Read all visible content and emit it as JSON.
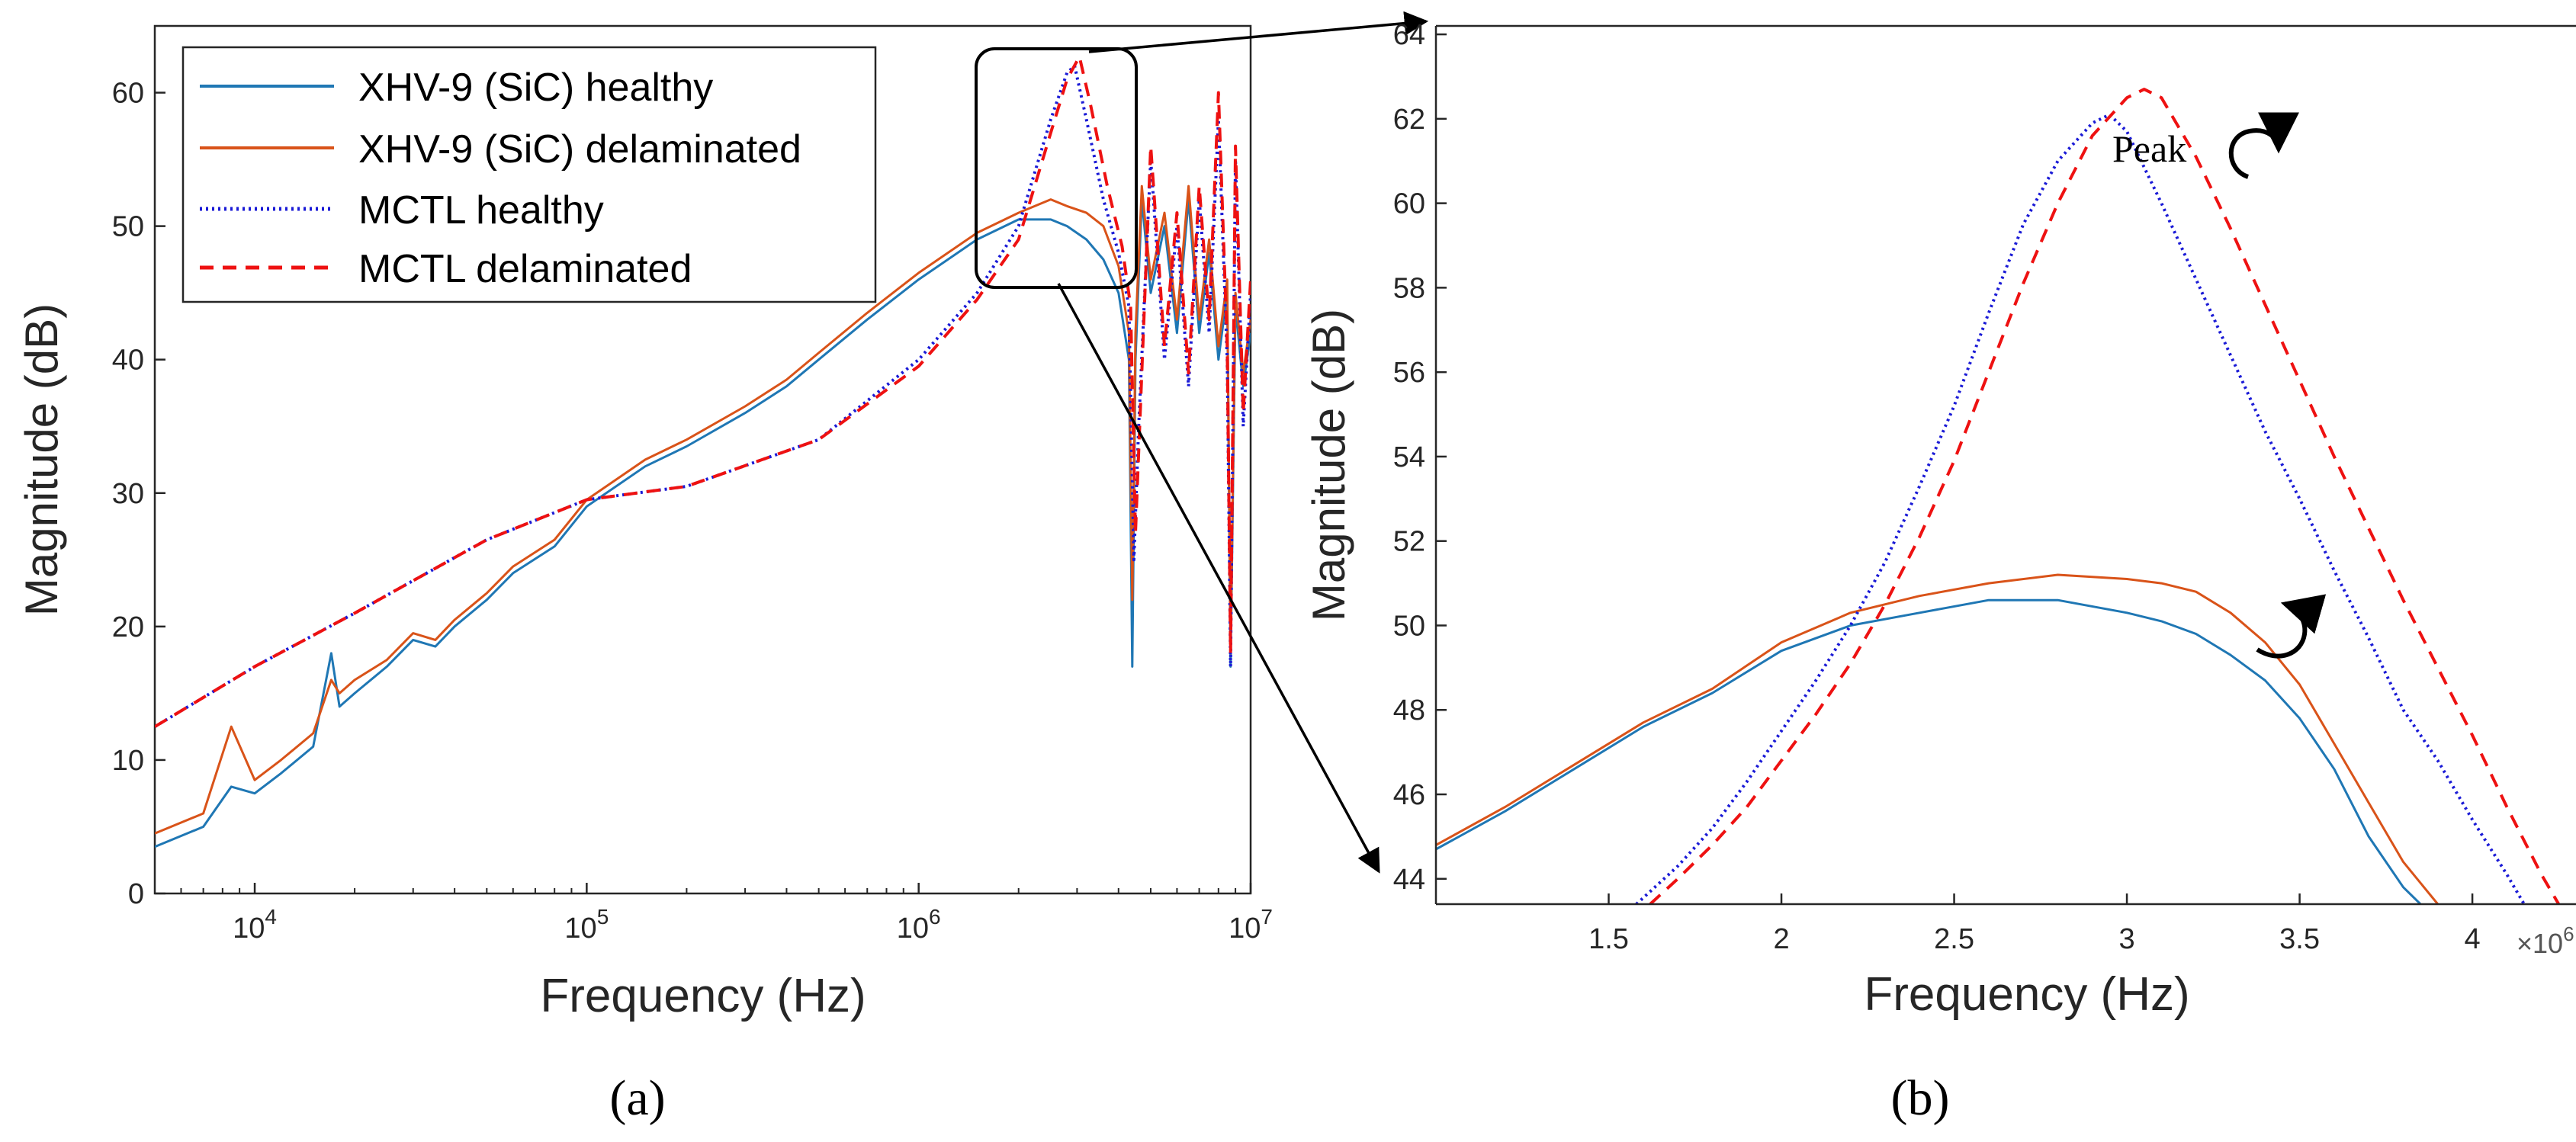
{
  "chart_data": [
    {
      "id": "a",
      "type": "line",
      "caption": "(a)",
      "xlabel": "Frequency (Hz)",
      "ylabel": "Magnitude (dB)",
      "xscale": "log",
      "xlim": [
        5000,
        10000000
      ],
      "ylim": [
        0,
        65
      ],
      "xticks": [
        10000,
        100000,
        1000000,
        10000000
      ],
      "xtick_labels": [
        [
          "10",
          "4"
        ],
        [
          "10",
          "5"
        ],
        [
          "10",
          "6"
        ],
        [
          "10",
          "7"
        ]
      ],
      "yticks": [
        0,
        10,
        20,
        30,
        40,
        50,
        60
      ],
      "ytick_labels": [
        "0",
        "10",
        "20",
        "30",
        "40",
        "50",
        "60"
      ],
      "legend_position": "top-left",
      "series": [
        {
          "name": "XHV-9 (SiC) healthy",
          "color": "#1f77b4",
          "style": "solid",
          "x": [
            5000,
            7000,
            8500,
            10000,
            12000,
            15000,
            17000,
            18000,
            20000,
            25000,
            30000,
            35000,
            40000,
            50000,
            60000,
            80000,
            100000,
            150000,
            200000,
            300000,
            400000,
            500000,
            700000,
            1000000,
            1500000,
            2000000,
            2500000,
            2800000,
            3200000,
            3600000,
            4000000,
            4300000,
            4400000,
            4500000,
            4700000,
            5000000,
            5500000,
            6000000,
            6500000,
            7000000,
            7500000,
            8000000,
            8500000,
            8700000,
            9000000,
            9500000,
            10000000
          ],
          "y": [
            3.5,
            5,
            8,
            7.5,
            9,
            11,
            18,
            14,
            15,
            17,
            19,
            18.5,
            20,
            22,
            24,
            26,
            29,
            32,
            33.5,
            36,
            38,
            40,
            43,
            46,
            49,
            50.5,
            50.5,
            50,
            49,
            47.5,
            45,
            40,
            17,
            40,
            52,
            45,
            50,
            42,
            52,
            42,
            48,
            40,
            45,
            17,
            44,
            38,
            42
          ]
        },
        {
          "name": "XHV-9 (SiC) delaminated",
          "color": "#d95319",
          "style": "solid",
          "x": [
            5000,
            7000,
            8500,
            10000,
            12000,
            15000,
            17000,
            18000,
            20000,
            25000,
            30000,
            35000,
            40000,
            50000,
            60000,
            80000,
            100000,
            150000,
            200000,
            300000,
            400000,
            500000,
            700000,
            1000000,
            1500000,
            2000000,
            2500000,
            2800000,
            3200000,
            3600000,
            4000000,
            4300000,
            4400000,
            4500000,
            4700000,
            5000000,
            5500000,
            6000000,
            6500000,
            7000000,
            7500000,
            8000000,
            8500000,
            8700000,
            9000000,
            9500000,
            10000000
          ],
          "y": [
            4.5,
            6,
            12.5,
            8.5,
            10,
            12,
            16,
            15,
            16,
            17.5,
            19.5,
            19,
            20.5,
            22.5,
            24.5,
            26.5,
            29.5,
            32.5,
            34,
            36.5,
            38.5,
            40.5,
            43.5,
            46.5,
            49.5,
            51,
            52,
            51.5,
            51,
            50,
            47,
            42,
            22,
            42,
            53,
            46,
            51,
            43,
            53,
            43,
            49,
            41,
            46,
            18,
            45,
            39,
            43
          ]
        },
        {
          "name": "MCTL healthy",
          "color": "#1a1ad6",
          "style": "dotted",
          "x": [
            5000,
            10000,
            20000,
            50000,
            100000,
            200000,
            500000,
            1000000,
            1500000,
            2000000,
            2500000,
            2800000,
            2950000,
            3200000,
            3600000,
            4000000,
            4300000,
            4450000,
            4600000,
            5000000,
            5500000,
            6000000,
            6500000,
            7000000,
            7500000,
            8000000,
            8500000,
            8700000,
            9000000,
            9500000,
            10000000
          ],
          "y": [
            12.5,
            17,
            21,
            26.5,
            29.5,
            30.5,
            34,
            40,
            45,
            50,
            58,
            61.5,
            62,
            58,
            52,
            48,
            44,
            25,
            35,
            55,
            40,
            50,
            38,
            52,
            42,
            58,
            40,
            17,
            55,
            35,
            45
          ]
        },
        {
          "name": "MCTL delaminated",
          "color": "#ee1111",
          "style": "dashed",
          "x": [
            5000,
            10000,
            20000,
            50000,
            100000,
            200000,
            500000,
            1000000,
            1500000,
            2000000,
            2500000,
            2800000,
            3050000,
            3300000,
            3700000,
            4100000,
            4350000,
            4500000,
            4650000,
            5000000,
            5500000,
            6000000,
            6500000,
            7000000,
            7500000,
            8000000,
            8500000,
            8700000,
            9000000,
            9500000,
            10000000
          ],
          "y": [
            12.5,
            17,
            21,
            26.5,
            29.5,
            30.5,
            34,
            39.5,
            44.5,
            49,
            57,
            61,
            62.7,
            59,
            53,
            48.5,
            44,
            27,
            36,
            56,
            41,
            51,
            39,
            53,
            43,
            60,
            41,
            18,
            56,
            36,
            46
          ]
        }
      ]
    },
    {
      "id": "b",
      "type": "line",
      "caption": "(b)",
      "xlabel": "Frequency (Hz)",
      "ylabel": "Magnitude (dB)",
      "xscale": "linear",
      "x_multiplier": "×10",
      "x_multiplier_exp": "6",
      "xlim": [
        1.0,
        4.3
      ],
      "ylim": [
        43.4,
        64.2
      ],
      "xticks": [
        1.5,
        2,
        2.5,
        3,
        3.5,
        4
      ],
      "xtick_labels": [
        "1.5",
        "2",
        "2.5",
        "3",
        "3.5",
        "4"
      ],
      "yticks": [
        44,
        46,
        48,
        50,
        52,
        54,
        56,
        58,
        60,
        62,
        64
      ],
      "ytick_labels": [
        "44",
        "46",
        "48",
        "50",
        "52",
        "54",
        "56",
        "58",
        "60",
        "62",
        "64"
      ],
      "annotations": [
        {
          "text": "Peak",
          "x": 2.55,
          "y": 61.8
        }
      ],
      "series": [
        {
          "name": "XHV-9 (SiC) healthy",
          "color": "#1f77b4",
          "style": "solid",
          "x": [
            1.0,
            1.2,
            1.4,
            1.6,
            1.8,
            2.0,
            2.2,
            2.4,
            2.6,
            2.8,
            3.0,
            3.1,
            3.2,
            3.3,
            3.4,
            3.5,
            3.6,
            3.7,
            3.8,
            3.85
          ],
          "y": [
            44.7,
            45.6,
            46.6,
            47.6,
            48.4,
            49.4,
            50.0,
            50.3,
            50.6,
            50.6,
            50.3,
            50.1,
            49.8,
            49.3,
            48.7,
            47.8,
            46.6,
            45.0,
            43.8,
            43.4
          ]
        },
        {
          "name": "XHV-9 (SiC) delaminated",
          "color": "#d95319",
          "style": "solid",
          "x": [
            1.0,
            1.2,
            1.4,
            1.6,
            1.8,
            2.0,
            2.2,
            2.4,
            2.6,
            2.8,
            3.0,
            3.1,
            3.2,
            3.3,
            3.4,
            3.5,
            3.6,
            3.7,
            3.8,
            3.9
          ],
          "y": [
            44.8,
            45.7,
            46.7,
            47.7,
            48.5,
            49.6,
            50.3,
            50.7,
            51.0,
            51.2,
            51.1,
            51.0,
            50.8,
            50.3,
            49.6,
            48.6,
            47.2,
            45.8,
            44.4,
            43.4
          ]
        },
        {
          "name": "MCTL healthy",
          "color": "#1a1ad6",
          "style": "dotted",
          "x": [
            1.58,
            1.7,
            1.8,
            1.9,
            2.0,
            2.1,
            2.2,
            2.3,
            2.4,
            2.5,
            2.6,
            2.7,
            2.8,
            2.9,
            2.95,
            3.0,
            3.1,
            3.2,
            3.3,
            3.4,
            3.5,
            3.6,
            3.7,
            3.8,
            3.9,
            4.0,
            4.1,
            4.15
          ],
          "y": [
            43.4,
            44.3,
            45.2,
            46.3,
            47.5,
            48.7,
            50.0,
            51.5,
            53.3,
            55.2,
            57.4,
            59.5,
            61.0,
            61.9,
            62.1,
            61.7,
            60.0,
            58.2,
            56.4,
            54.6,
            53.0,
            51.3,
            49.7,
            48.0,
            46.8,
            45.4,
            44.1,
            43.4
          ]
        },
        {
          "name": "MCTL delaminated",
          "color": "#ee1111",
          "style": "dashed",
          "x": [
            1.62,
            1.7,
            1.8,
            1.9,
            2.0,
            2.1,
            2.2,
            2.3,
            2.4,
            2.5,
            2.6,
            2.7,
            2.8,
            2.9,
            3.0,
            3.05,
            3.1,
            3.2,
            3.3,
            3.4,
            3.5,
            3.6,
            3.7,
            3.8,
            3.9,
            4.0,
            4.1,
            4.2,
            4.25
          ],
          "y": [
            43.4,
            44.0,
            44.8,
            45.7,
            46.8,
            47.9,
            49.1,
            50.5,
            52.1,
            53.9,
            56.0,
            58.1,
            60.0,
            61.6,
            62.5,
            62.7,
            62.5,
            61.1,
            59.4,
            57.6,
            55.8,
            54.0,
            52.3,
            50.6,
            49.0,
            47.4,
            45.7,
            44.1,
            43.4
          ]
        }
      ]
    }
  ]
}
